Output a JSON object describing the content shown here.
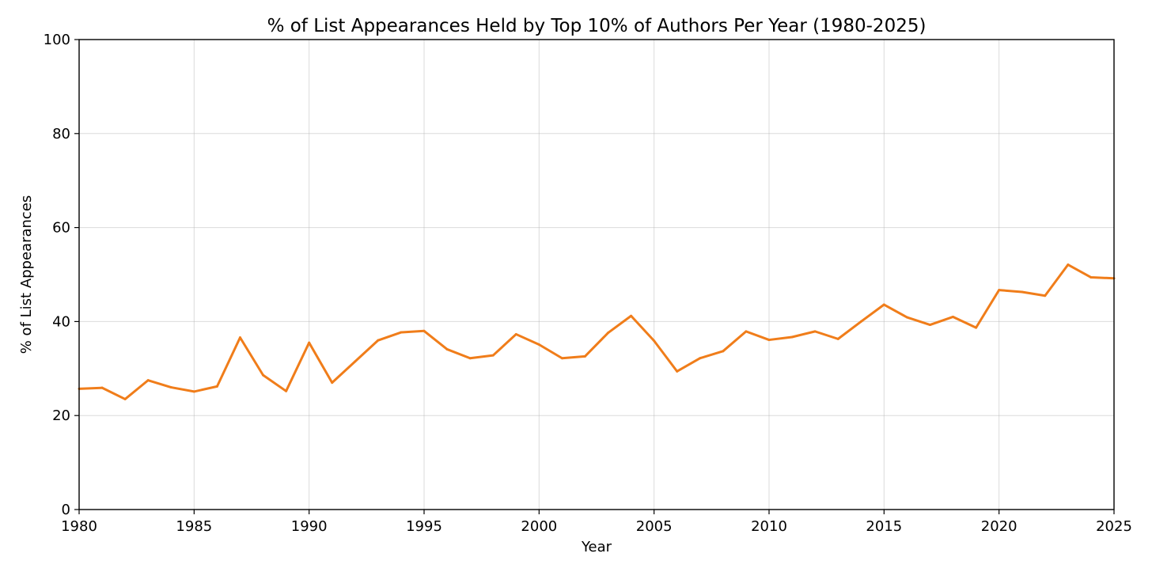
{
  "chart_data": {
    "type": "line",
    "title": "% of List Appearances Held by Top 10% of Authors Per Year (1980-2025)",
    "xlabel": "Year",
    "ylabel": "% of List Appearances",
    "xlim": [
      1980,
      2025
    ],
    "ylim": [
      0,
      100
    ],
    "xticks": [
      1980,
      1985,
      1990,
      1995,
      2000,
      2005,
      2010,
      2015,
      2020,
      2025
    ],
    "yticks": [
      0,
      20,
      40,
      60,
      80,
      100
    ],
    "grid": true,
    "series": [
      {
        "color": "#f07d1a",
        "x": [
          1980,
          1981,
          1982,
          1983,
          1984,
          1985,
          1986,
          1987,
          1988,
          1989,
          1990,
          1991,
          1992,
          1993,
          1994,
          1995,
          1996,
          1997,
          1998,
          1999,
          2000,
          2001,
          2002,
          2003,
          2004,
          2005,
          2006,
          2007,
          2008,
          2009,
          2010,
          2011,
          2012,
          2013,
          2014,
          2015,
          2016,
          2017,
          2018,
          2019,
          2020,
          2021,
          2022,
          2023,
          2024,
          2025
        ],
        "values": [
          25.7,
          25.9,
          23.5,
          27.5,
          26.0,
          25.1,
          26.2,
          36.6,
          28.6,
          25.2,
          35.5,
          27.0,
          31.5,
          36.0,
          37.7,
          38.0,
          34.1,
          32.2,
          32.8,
          37.3,
          35.1,
          32.2,
          32.6,
          37.6,
          41.2,
          35.9,
          29.4,
          32.2,
          33.7,
          37.9,
          36.1,
          36.7,
          37.9,
          36.3,
          40.0,
          43.6,
          40.9,
          39.3,
          41.0,
          38.7,
          46.7,
          46.3,
          45.5,
          52.1,
          49.4,
          49.2
        ]
      }
    ]
  }
}
